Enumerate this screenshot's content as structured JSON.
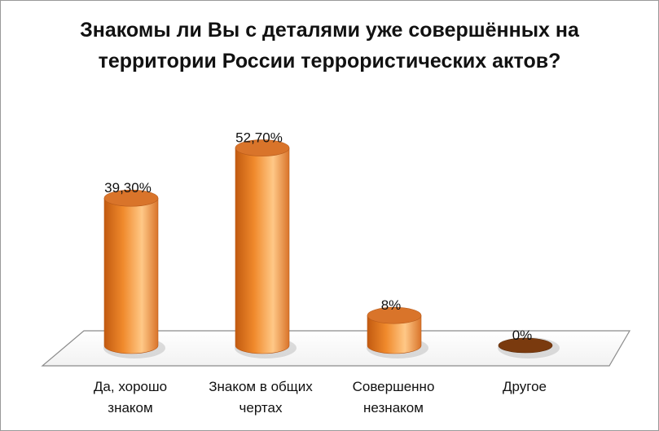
{
  "chart_data": {
    "type": "bar",
    "title_lines": [
      "Знакомы ли Вы с деталями уже совершённых на",
      "территории России террористических актов?"
    ],
    "categories": [
      [
        "Да, хорошо",
        "знаком"
      ],
      [
        "Знаком в общих",
        "чертах"
      ],
      [
        "Совершенно",
        "незнаком"
      ],
      [
        "Другое"
      ]
    ],
    "values": [
      39.3,
      52.7,
      8,
      0
    ],
    "data_labels": [
      "39,30%",
      "52,70%",
      "8%",
      "0%"
    ],
    "ylim": [
      0,
      60
    ],
    "grid": false,
    "legend": "none",
    "colors": {
      "bar": "#f08a2c",
      "bar_light": "#ffc887",
      "bar_dark": "#c25a10",
      "top": "#d9742a",
      "zero_top": "#7a3a0e",
      "floor": "#ffffff",
      "floor_edge": "#8c8c8c"
    }
  }
}
